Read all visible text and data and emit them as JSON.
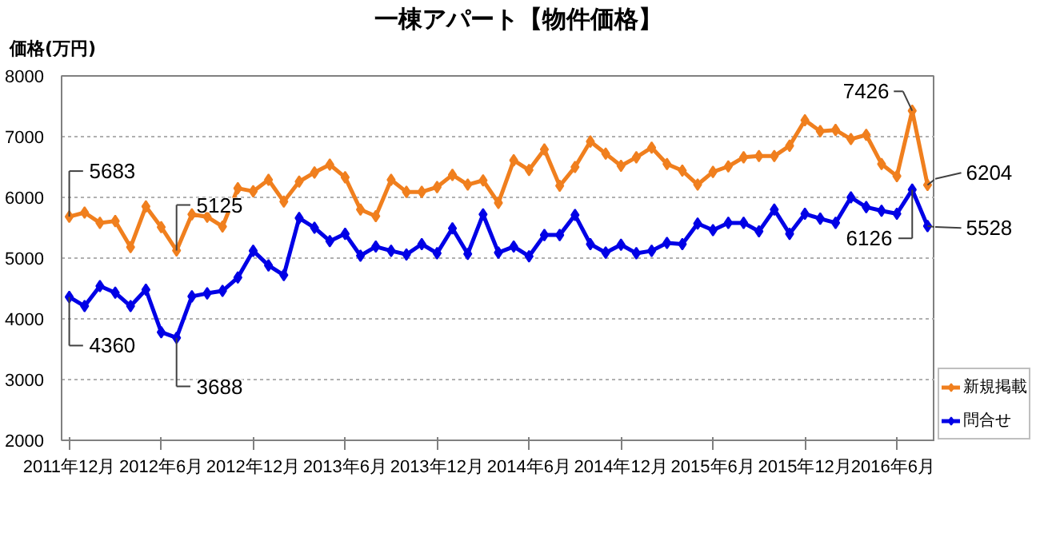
{
  "chart_data": {
    "type": "line",
    "title": "一棟アパート【物件価格】",
    "ylabel": "価格(万円)",
    "x": [
      "2011-12",
      "2012-01",
      "2012-02",
      "2012-03",
      "2012-04",
      "2012-05",
      "2012-06",
      "2012-07",
      "2012-08",
      "2012-09",
      "2012-10",
      "2012-11",
      "2012-12",
      "2013-01",
      "2013-02",
      "2013-03",
      "2013-04",
      "2013-05",
      "2013-06",
      "2013-07",
      "2013-08",
      "2013-09",
      "2013-10",
      "2013-11",
      "2013-12",
      "2014-01",
      "2014-02",
      "2014-03",
      "2014-04",
      "2014-05",
      "2014-06",
      "2014-07",
      "2014-08",
      "2014-09",
      "2014-10",
      "2014-11",
      "2014-12",
      "2015-01",
      "2015-02",
      "2015-03",
      "2015-04",
      "2015-05",
      "2015-06",
      "2015-07",
      "2015-08",
      "2015-09",
      "2015-10",
      "2015-11",
      "2015-12",
      "2016-01",
      "2016-02",
      "2016-03",
      "2016-04",
      "2016-05",
      "2016-06",
      "2016-07",
      "2016-08"
    ],
    "series": [
      {
        "name": "新規掲載",
        "color": "#f07f1e",
        "values": [
          5683,
          5750,
          5580,
          5610,
          5180,
          5850,
          5510,
          5125,
          5720,
          5680,
          5520,
          6150,
          6100,
          6290,
          5930,
          6260,
          6410,
          6540,
          6330,
          5800,
          5690,
          6290,
          6090,
          6090,
          6170,
          6370,
          6210,
          6280,
          5910,
          6610,
          6450,
          6790,
          6190,
          6500,
          6920,
          6720,
          6520,
          6660,
          6820,
          6550,
          6440,
          6210,
          6420,
          6510,
          6660,
          6680,
          6680,
          6850,
          7270,
          7090,
          7110,
          6960,
          7030,
          6550,
          6350,
          7426,
          6204
        ]
      },
      {
        "name": "問合せ",
        "color": "#0000e6",
        "values": [
          4360,
          4210,
          4540,
          4430,
          4210,
          4480,
          3780,
          3688,
          4370,
          4420,
          4460,
          4680,
          5120,
          4880,
          4720,
          5660,
          5500,
          5280,
          5400,
          5040,
          5190,
          5120,
          5060,
          5230,
          5080,
          5490,
          5070,
          5720,
          5090,
          5190,
          5030,
          5380,
          5380,
          5710,
          5230,
          5090,
          5220,
          5080,
          5120,
          5250,
          5230,
          5570,
          5460,
          5580,
          5580,
          5440,
          5800,
          5400,
          5730,
          5650,
          5580,
          6000,
          5840,
          5780,
          5730,
          6126,
          5528
        ]
      }
    ],
    "xlim": [
      "2011-11-16",
      "2016-08-16"
    ],
    "xticks": [
      {
        "value": "2011-12",
        "label": "2011年12月"
      },
      {
        "value": "2012-06",
        "label": "2012年6月"
      },
      {
        "value": "2012-12",
        "label": "2012年12月"
      },
      {
        "value": "2013-06",
        "label": "2013年6月"
      },
      {
        "value": "2013-12",
        "label": "2013年12月"
      },
      {
        "value": "2014-06",
        "label": "2014年6月"
      },
      {
        "value": "2014-12",
        "label": "2014年12月"
      },
      {
        "value": "2015-06",
        "label": "2015年6月"
      },
      {
        "value": "2015-12",
        "label": "2015年12月"
      },
      {
        "value": "2016-06",
        "label": "2016年6月"
      }
    ],
    "ylim": [
      2000,
      8000
    ],
    "yticks": [
      2000,
      3000,
      4000,
      5000,
      6000,
      7000,
      8000
    ],
    "annotations": [
      {
        "text": "5683",
        "x": "2011-12",
        "y": 5683
      },
      {
        "text": "4360",
        "x": "2011-12",
        "y": 4360
      },
      {
        "text": "5125",
        "x": "2012-07",
        "y": 5125
      },
      {
        "text": "3688",
        "x": "2012-07",
        "y": 3688
      },
      {
        "text": "7426",
        "x": "2016-07",
        "y": 7426
      },
      {
        "text": "6126",
        "x": "2016-07",
        "y": 6126
      },
      {
        "text": "6204",
        "x": "2016-08",
        "y": 6204
      },
      {
        "text": "5528",
        "x": "2016-08",
        "y": 5528
      }
    ],
    "grid": "y",
    "legend": "bottom right",
    "marker": "diamond",
    "line_style": "solid"
  }
}
